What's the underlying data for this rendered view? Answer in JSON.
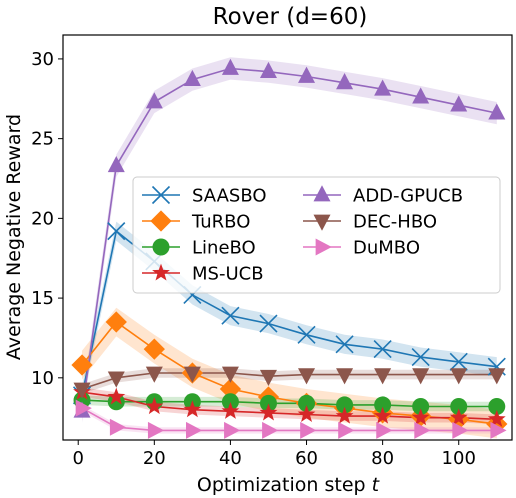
{
  "chart_data": {
    "type": "line",
    "title": "Rover (d=60)",
    "xlabel": "Optimization step",
    "xlabel_var": "t",
    "ylabel": "Average Negative Reward",
    "xlim": [
      -4,
      114
    ],
    "ylim": [
      6.1,
      31.5
    ],
    "xticks": [
      0,
      20,
      40,
      60,
      80,
      100
    ],
    "yticks": [
      10,
      15,
      20,
      25,
      30
    ],
    "grid": false,
    "legend_position": "center-right",
    "x": [
      1,
      10,
      20,
      30,
      40,
      50,
      60,
      70,
      80,
      90,
      100,
      110
    ],
    "series": [
      {
        "name": "SAASBO",
        "color": "#1f77b4",
        "marker": "x",
        "values": [
          8.9,
          19.2,
          17.3,
          15.2,
          13.9,
          13.4,
          12.7,
          12.1,
          11.8,
          11.3,
          11.0,
          10.7
        ],
        "band": 0.6
      },
      {
        "name": "TuRBO",
        "color": "#ff7f0e",
        "marker": "diamond",
        "values": [
          10.8,
          13.5,
          11.8,
          10.3,
          9.3,
          8.8,
          8.4,
          8.1,
          7.8,
          7.6,
          7.4,
          7.1
        ],
        "band": 0.9
      },
      {
        "name": "LineBO",
        "color": "#2ca02c",
        "marker": "circle",
        "values": [
          8.6,
          8.5,
          8.5,
          8.5,
          8.5,
          8.4,
          8.4,
          8.3,
          8.3,
          8.2,
          8.2,
          8.2
        ],
        "band": 0.3
      },
      {
        "name": "MS-UCB",
        "color": "#d62728",
        "marker": "star",
        "values": [
          9.1,
          8.8,
          8.2,
          8.0,
          7.9,
          7.8,
          7.7,
          7.6,
          7.6,
          7.5,
          7.5,
          7.4
        ],
        "band": 0.3
      },
      {
        "name": "ADD-GPUCB",
        "color": "#9467bd",
        "marker": "triangle-up",
        "values": [
          7.9,
          23.3,
          27.3,
          28.7,
          29.4,
          29.2,
          28.9,
          28.5,
          28.1,
          27.6,
          27.1,
          26.6
        ],
        "band": 0.7
      },
      {
        "name": "DEC-HBO",
        "color": "#8c564b",
        "marker": "triangle-down",
        "values": [
          9.3,
          10.0,
          10.3,
          10.3,
          10.3,
          10.1,
          10.2,
          10.2,
          10.2,
          10.2,
          10.2,
          10.2
        ],
        "band": 0.3
      },
      {
        "name": "DuMBO",
        "color": "#e377c2",
        "marker": "triangle-right",
        "values": [
          8.1,
          6.9,
          6.7,
          6.7,
          6.7,
          6.7,
          6.7,
          6.7,
          6.7,
          6.7,
          6.7,
          6.7
        ],
        "band": 0.2
      }
    ]
  }
}
